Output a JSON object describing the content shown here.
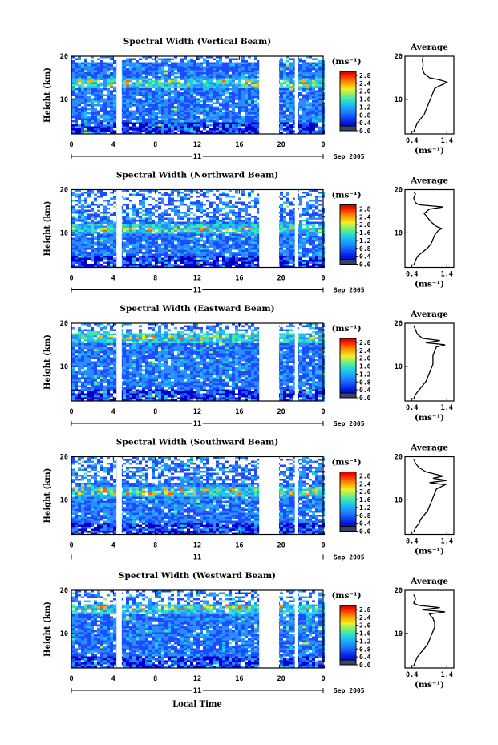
{
  "chart_data": [
    {
      "type": "heatmap",
      "title": "Spectral Width (Vertical Beam)",
      "ylabel": "Height (km)",
      "xticks": [
        "0",
        "4",
        "8",
        "12",
        "16",
        "20",
        "0"
      ],
      "xlim": [
        0,
        24
      ],
      "yticks": [
        "20",
        "10"
      ],
      "ylim": [
        2,
        20
      ],
      "date_day": "11",
      "date_month": "Sep 2005",
      "colorbar": {
        "label": "(ms⁻¹)",
        "ticks": [
          "2.8",
          "2.4",
          "2.0",
          "1.6",
          "1.2",
          "0.8",
          "0.4",
          "0.0"
        ],
        "range": [
          0,
          3.0
        ]
      },
      "data_gaps_hours": [
        [
          4.3,
          4.8
        ],
        [
          17.9,
          19.8
        ],
        [
          21.3,
          21.6
        ]
      ],
      "top_cutoff_km": 20,
      "high_width_layer_km": 14,
      "average_profile": {
        "title": "Average",
        "xlabel": "(ms⁻¹)",
        "xticks": [
          "0.4",
          "1.4"
        ],
        "xlim": [
          0.2,
          1.6
        ],
        "yticks": [
          "20",
          "10"
        ],
        "height_km": [
          2.5,
          3.5,
          4.5,
          5.5,
          6.5,
          7.5,
          8.5,
          9.5,
          10.5,
          11.5,
          12.5,
          13.0,
          13.5,
          14.0,
          14.5,
          15.0,
          16.0,
          17.0,
          18.0,
          19.0,
          20.0
        ],
        "width_ms": [
          0.45,
          0.5,
          0.55,
          0.65,
          0.75,
          0.8,
          0.85,
          0.9,
          0.95,
          1.0,
          1.05,
          1.15,
          1.3,
          1.4,
          1.2,
          0.9,
          0.75,
          0.7,
          0.72,
          0.7,
          0.72
        ]
      }
    },
    {
      "type": "heatmap",
      "title": "Spectral Width (Northward Beam)",
      "ylabel": "Height (km)",
      "xticks": [
        "0",
        "4",
        "8",
        "12",
        "16",
        "20",
        "0"
      ],
      "xlim": [
        0,
        24
      ],
      "yticks": [
        "20",
        "10"
      ],
      "ylim": [
        2,
        20
      ],
      "date_day": "11",
      "date_month": "Sep 2005",
      "colorbar": {
        "label": "(ms⁻¹)",
        "ticks": [
          "2.8",
          "2.4",
          "2.0",
          "1.6",
          "1.2",
          "0.8",
          "0.4",
          "0.0"
        ],
        "range": [
          0,
          3.0
        ]
      },
      "data_gaps_hours": [
        [
          4.3,
          4.8
        ],
        [
          17.9,
          19.8
        ],
        [
          21.3,
          21.6
        ]
      ],
      "top_cutoff_km": 17,
      "high_width_layer_km": 11,
      "average_profile": {
        "title": "Average",
        "xlabel": "(ms⁻¹)",
        "xticks": [
          "0.4",
          "1.4"
        ],
        "xlim": [
          0.2,
          1.6
        ],
        "yticks": [
          "20",
          "10"
        ],
        "height_km": [
          2.5,
          3.5,
          4.5,
          5.5,
          6.5,
          7.5,
          8.5,
          9.5,
          10.5,
          11.0,
          11.5,
          12.5,
          13.5,
          14.5,
          15.5,
          16.0,
          16.5,
          17.0,
          18.0,
          19.0,
          19.5
        ],
        "width_ms": [
          0.45,
          0.5,
          0.55,
          0.7,
          0.85,
          0.95,
          1.0,
          1.05,
          1.15,
          1.25,
          1.1,
          0.95,
          0.85,
          0.75,
          0.9,
          1.3,
          0.6,
          0.5,
          0.45,
          0.5,
          0.45
        ]
      }
    },
    {
      "type": "heatmap",
      "title": "Spectral Width (Eastward Beam)",
      "ylabel": "Height (km)",
      "xticks": [
        "0",
        "4",
        "8",
        "12",
        "16",
        "20",
        "0"
      ],
      "xlim": [
        0,
        24
      ],
      "yticks": [
        "20",
        "10"
      ],
      "ylim": [
        2,
        20
      ],
      "date_day": "11",
      "date_month": "Sep 2005",
      "colorbar": {
        "label": "(ms⁻¹)",
        "ticks": [
          "2.8",
          "2.4",
          "2.0",
          "1.6",
          "1.2",
          "0.8",
          "0.4",
          "0.0"
        ],
        "range": [
          0,
          3.0
        ]
      },
      "data_gaps_hours": [
        [
          4.3,
          4.8
        ],
        [
          17.9,
          19.8
        ],
        [
          21.3,
          21.6
        ]
      ],
      "top_cutoff_km": 19,
      "high_width_layer_km": 17,
      "average_profile": {
        "title": "Average",
        "xlabel": "(ms⁻¹)",
        "xticks": [
          "0.4",
          "1.4"
        ],
        "xlim": [
          0.2,
          1.6
        ],
        "yticks": [
          "20",
          "10"
        ],
        "height_km": [
          2.5,
          3.5,
          4.5,
          5.5,
          6.5,
          7.5,
          8.5,
          9.5,
          10.5,
          11.5,
          12.5,
          13.5,
          14.5,
          15.0,
          15.5,
          16.0,
          16.5,
          17.5,
          18.5,
          19.5
        ],
        "width_ms": [
          0.45,
          0.5,
          0.6,
          0.7,
          0.8,
          0.85,
          0.9,
          0.95,
          1.0,
          1.0,
          1.0,
          1.05,
          1.1,
          1.35,
          0.8,
          1.2,
          0.7,
          0.55,
          0.5,
          0.45
        ]
      }
    },
    {
      "type": "heatmap",
      "title": "Spectral Width (Southward Beam)",
      "ylabel": "Height (km)",
      "xticks": [
        "0",
        "4",
        "8",
        "12",
        "16",
        "20",
        "0"
      ],
      "xlim": [
        0,
        24
      ],
      "yticks": [
        "20",
        "10"
      ],
      "ylim": [
        2,
        20
      ],
      "date_day": "11",
      "date_month": "Sep 2005",
      "colorbar": {
        "label": "(ms⁻¹)",
        "ticks": [
          "2.8",
          "2.4",
          "2.0",
          "1.6",
          "1.2",
          "0.8",
          "0.4",
          "0.0"
        ],
        "range": [
          0,
          3.0
        ]
      },
      "data_gaps_hours": [
        [
          4.3,
          4.8
        ],
        [
          17.9,
          19.8
        ],
        [
          21.3,
          21.6
        ]
      ],
      "top_cutoff_km": 19,
      "high_width_layer_km": 12,
      "average_profile": {
        "title": "Average",
        "xlabel": "(ms⁻¹)",
        "xticks": [
          "0.4",
          "1.4"
        ],
        "xlim": [
          0.2,
          1.6
        ],
        "yticks": [
          "20",
          "10"
        ],
        "height_km": [
          2.5,
          3.5,
          4.5,
          5.5,
          6.5,
          7.5,
          8.5,
          9.5,
          10.5,
          11.5,
          12.5,
          13.5,
          14.0,
          14.5,
          15.0,
          15.5,
          16.5,
          17.5,
          18.5,
          19.5
        ],
        "width_ms": [
          0.45,
          0.5,
          0.6,
          0.65,
          0.75,
          0.85,
          0.9,
          0.95,
          1.0,
          1.05,
          1.1,
          1.35,
          0.9,
          1.4,
          1.0,
          1.3,
          0.8,
          0.6,
          0.5,
          0.45
        ]
      }
    },
    {
      "type": "heatmap",
      "title": "Spectral Width (Westward Beam)",
      "ylabel": "Height (km)",
      "xticks": [
        "0",
        "4",
        "8",
        "12",
        "16",
        "20",
        "0"
      ],
      "xlim": [
        0,
        24
      ],
      "yticks": [
        "20",
        "10"
      ],
      "ylim": [
        2,
        20
      ],
      "date_day": "11",
      "date_month": "Sep 2005",
      "xlabel": "Local Time",
      "colorbar": {
        "label": "(ms⁻¹)",
        "ticks": [
          "2.8",
          "2.4",
          "2.0",
          "1.6",
          "1.2",
          "0.8",
          "0.4",
          "0.0"
        ],
        "range": [
          0,
          3.0
        ]
      },
      "data_gaps_hours": [
        [
          4.3,
          4.8
        ],
        [
          17.9,
          19.8
        ],
        [
          21.3,
          21.6
        ]
      ],
      "top_cutoff_km": 18,
      "high_width_layer_km": 16,
      "average_profile": {
        "title": "Average",
        "xlabel": "(ms⁻¹)",
        "xticks": [
          "0.4",
          "1.4"
        ],
        "xlim": [
          0.2,
          1.6
        ],
        "yticks": [
          "20",
          "10"
        ],
        "height_km": [
          2.5,
          3.5,
          4.5,
          5.5,
          6.5,
          7.5,
          8.5,
          9.5,
          10.5,
          11.5,
          12.5,
          13.5,
          14.5,
          15.0,
          15.5,
          16.0,
          16.5,
          17.0,
          18.0,
          19.0
        ],
        "width_ms": [
          0.45,
          0.5,
          0.55,
          0.65,
          0.75,
          0.85,
          0.9,
          0.95,
          1.0,
          1.05,
          1.05,
          1.0,
          0.9,
          1.35,
          0.7,
          1.2,
          0.6,
          0.45,
          0.5,
          0.45
        ]
      }
    }
  ],
  "colors": {
    "jet": [
      "#1a1a80",
      "#0000c8",
      "#1c4cff",
      "#2a8cff",
      "#18c8f0",
      "#40e8b0",
      "#a0f060",
      "#f0f020",
      "#ffb000",
      "#ff6000",
      "#e00000",
      "#a00000"
    ],
    "bar_bottom": "#334466"
  }
}
